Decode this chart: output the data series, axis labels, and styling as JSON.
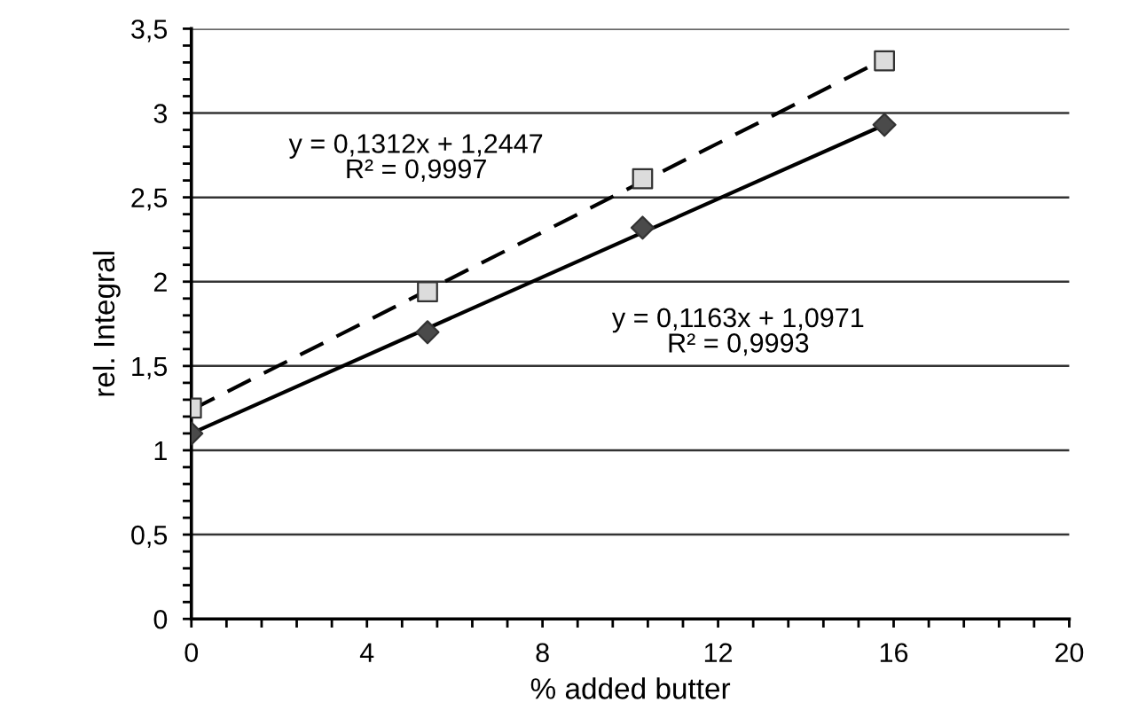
{
  "chart_data": {
    "type": "scatter",
    "xlabel": "% added butter",
    "ylabel": "rel. Integral",
    "xlim": [
      0,
      20
    ],
    "ylim": [
      0,
      3.5
    ],
    "xticks": [
      0,
      {
        "value": 0.8,
        "label": null
      },
      {
        "value": 1.6,
        "label": null
      },
      {
        "value": 2.4,
        "label": null
      },
      {
        "value": 3.2,
        "label": null
      },
      4,
      {
        "value": 4.8,
        "label": null
      },
      {
        "value": 5.6,
        "label": null
      },
      {
        "value": 6.4,
        "label": null
      },
      {
        "value": 7.2,
        "label": null
      },
      8,
      {
        "value": 8.8,
        "label": null
      },
      {
        "value": 9.6,
        "label": null
      },
      {
        "value": 10.4,
        "label": null
      },
      {
        "value": 11.2,
        "label": null
      },
      12,
      {
        "value": 12.8,
        "label": null
      },
      {
        "value": 13.6,
        "label": null
      },
      {
        "value": 14.4,
        "label": null
      },
      {
        "value": 15.2,
        "label": null
      },
      16,
      {
        "value": 16.8,
        "label": null
      },
      {
        "value": 17.6,
        "label": null
      },
      {
        "value": 18.4,
        "label": null
      },
      {
        "value": 19.2,
        "label": null
      },
      20
    ],
    "yticks": [
      0,
      {
        "value": 0.1,
        "label": null
      },
      {
        "value": 0.2,
        "label": null
      },
      {
        "value": 0.3,
        "label": null
      },
      {
        "value": 0.4,
        "label": null
      },
      {
        "value": 0.5,
        "label": "0,5"
      },
      {
        "value": 0.6,
        "label": null
      },
      {
        "value": 0.7,
        "label": null
      },
      {
        "value": 0.8,
        "label": null
      },
      {
        "value": 0.9,
        "label": null
      },
      1,
      {
        "value": 1.1,
        "label": null
      },
      {
        "value": 1.2,
        "label": null
      },
      {
        "value": 1.3,
        "label": null
      },
      {
        "value": 1.4,
        "label": null
      },
      {
        "value": 1.5,
        "label": "1,5"
      },
      {
        "value": 1.6,
        "label": null
      },
      {
        "value": 1.7,
        "label": null
      },
      {
        "value": 1.8,
        "label": null
      },
      {
        "value": 1.9,
        "label": null
      },
      2,
      {
        "value": 2.1,
        "label": null
      },
      {
        "value": 2.2,
        "label": null
      },
      {
        "value": 2.3,
        "label": null
      },
      {
        "value": 2.4,
        "label": null
      },
      {
        "value": 2.5,
        "label": "2,5"
      },
      {
        "value": 2.6,
        "label": null
      },
      {
        "value": 2.7,
        "label": null
      },
      {
        "value": 2.8,
        "label": null
      },
      {
        "value": 2.9,
        "label": null
      },
      3,
      {
        "value": 3.1,
        "label": null
      },
      {
        "value": 3.2,
        "label": null
      },
      {
        "value": 3.3,
        "label": null
      },
      {
        "value": 3.4,
        "label": null
      },
      {
        "value": 3.5,
        "label": "3,5"
      }
    ],
    "grid": "y",
    "series": [
      {
        "type": "line",
        "line_style": "dashed",
        "marker": "none",
        "color": "#000000",
        "x": [
          0,
          15.79
        ],
        "values": [
          1.24,
          3.32
        ]
      },
      {
        "type": "line",
        "line_style": "solid",
        "marker": "none",
        "color": "#000000",
        "x": [
          0,
          15.79
        ],
        "values": [
          1.1,
          2.93
        ]
      },
      {
        "marker": "square",
        "color": "#dcdcdc",
        "x": [
          0,
          5.38,
          10.28,
          15.79
        ],
        "values": [
          1.25,
          1.94,
          2.61,
          3.31
        ]
      },
      {
        "marker": "diamond",
        "color": "#4a4a4a",
        "x": [
          0,
          5.38,
          10.28,
          15.79
        ],
        "values": [
          1.1,
          1.7,
          2.32,
          2.93
        ]
      }
    ],
    "annotations": [
      "y = 0,1312x + 1,2447\nR² = 0,9997",
      "y = 0,1163x + 1,0971\nR² = 0,9993"
    ]
  }
}
